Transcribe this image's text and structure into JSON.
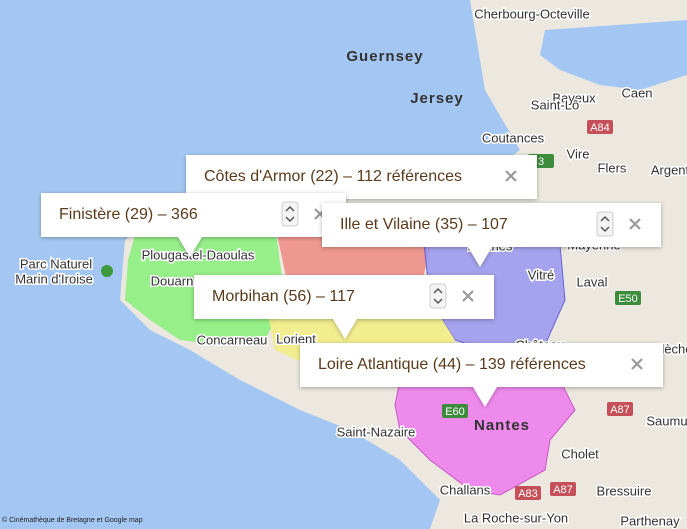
{
  "map": {
    "labels": [
      {
        "text": "Cherbourg-Octeville"
      },
      {
        "text": "Guernsey"
      },
      {
        "text": "Jersey"
      },
      {
        "text": "Bayeux"
      },
      {
        "text": "Caen"
      },
      {
        "text": "Saint-Lô"
      },
      {
        "text": "Coutances"
      },
      {
        "text": "Vire"
      },
      {
        "text": "Flers"
      },
      {
        "text": "Argent"
      },
      {
        "text": "Mayenne"
      },
      {
        "text": "Laval"
      },
      {
        "text": "Vitré"
      },
      {
        "text": "Rennes"
      },
      {
        "text": "Parc Naturel"
      },
      {
        "text": "Marin d'Iroise"
      },
      {
        "text": "Plougastel-Daoulas"
      },
      {
        "text": "Douarn"
      },
      {
        "text": "Concarneau"
      },
      {
        "text": "Lorient"
      },
      {
        "text": "Saint-Nazaire"
      },
      {
        "text": "Nantes"
      },
      {
        "text": "Cholet"
      },
      {
        "text": "Challans"
      },
      {
        "text": "Bressuire"
      },
      {
        "text": "La Roche-sur-Yon"
      },
      {
        "text": "Parthenay"
      },
      {
        "text": "Saumu"
      },
      {
        "text": "Flèche"
      },
      {
        "text": "Château"
      }
    ],
    "road_shields": [
      "A84",
      "3",
      "E50",
      "A87",
      "E60",
      "A83",
      "A87"
    ],
    "info_windows": [
      {
        "text": "Côtes d'Armor (22) – 112 références"
      },
      {
        "text": "Finistère (29) – 366"
      },
      {
        "text": "Ille et Vilaine (35) – 107"
      },
      {
        "text": "Morbihan (56) – 117"
      },
      {
        "text": "Loire Atlantique (44) – 139 références"
      }
    ],
    "credit": "© Cinémathèque de Bretagne et Google map"
  }
}
